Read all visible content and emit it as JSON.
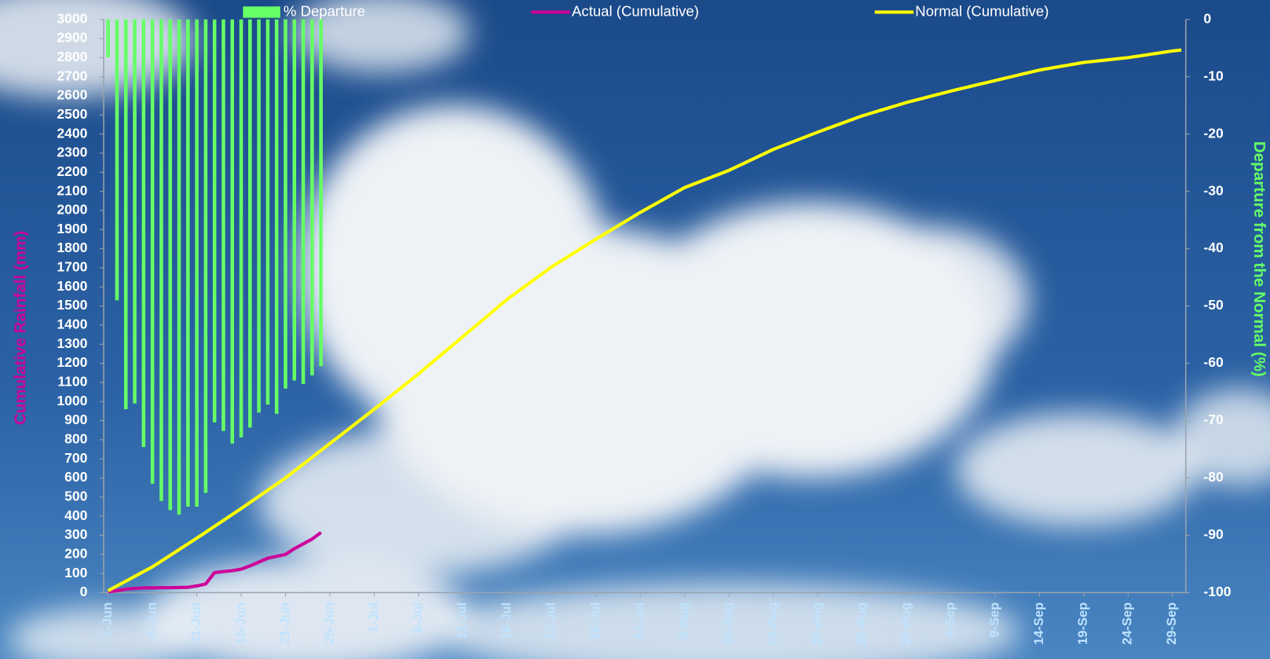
{
  "chart_data": {
    "type": "combo",
    "y_label": "Cumulative Rainfall (mm)",
    "y2_label": "Departure from the Normal (%)",
    "categories": [
      "1-Jun",
      null,
      null,
      null,
      null,
      "6-Jun",
      null,
      null,
      null,
      null,
      "11-Jun",
      null,
      null,
      null,
      null,
      "16-Jun",
      null,
      null,
      null,
      null,
      "21-Jun",
      null,
      null,
      null,
      null,
      "26-Jun",
      null,
      null,
      null,
      null,
      "1-Jul",
      null,
      null,
      null,
      null,
      "6-Jul",
      null,
      null,
      null,
      null,
      "11-Jul",
      null,
      null,
      null,
      null,
      "16-Jul",
      null,
      null,
      null,
      null,
      "21-Jul",
      null,
      null,
      null,
      null,
      "26-Jul",
      null,
      null,
      null,
      null,
      "31-Jul",
      null,
      null,
      null,
      null,
      "5-Aug",
      null,
      null,
      null,
      null,
      "10-Aug",
      null,
      null,
      null,
      null,
      "15-Aug",
      null,
      null,
      null,
      null,
      "20-Aug",
      null,
      null,
      null,
      null,
      "25-Aug",
      null,
      null,
      null,
      null,
      "30-Aug",
      null,
      null,
      null,
      null,
      "4-Sep",
      null,
      null,
      null,
      null,
      "9-Sep",
      null,
      null,
      null,
      null,
      "14-Sep",
      null,
      null,
      null,
      null,
      "19-Sep",
      null,
      null,
      null,
      null,
      "24-Sep",
      null,
      null,
      null,
      null,
      "29-Sep",
      null
    ],
    "series": [
      {
        "name": "% Departure",
        "type": "bar",
        "axis": "y2",
        "color": "#66ff66",
        "values": [
          -6.6,
          -49,
          -68,
          -67,
          -74.6,
          -81,
          -84,
          -85.6,
          -86.4,
          -85,
          -85,
          -82.6,
          -70.3,
          -71.8,
          -74,
          -72.9,
          -71.2,
          -68.6,
          -67.2,
          -68.8,
          -64.4,
          -63,
          -63.6,
          -62.1,
          -60.5,
          null,
          null,
          null,
          null,
          null,
          null,
          null,
          null,
          null,
          null,
          null,
          null,
          null,
          null,
          null,
          null,
          null,
          null,
          null,
          null,
          null,
          null,
          null,
          null,
          null,
          null,
          null,
          null,
          null,
          null,
          null,
          null,
          null,
          null,
          null,
          null,
          null,
          null,
          null,
          null,
          null,
          null,
          null,
          null,
          null,
          null,
          null,
          null,
          null,
          null,
          null,
          null,
          null,
          null,
          null,
          null,
          null,
          null,
          null,
          null,
          null,
          null,
          null,
          null,
          null,
          null,
          null,
          null,
          null,
          null,
          null,
          null,
          null,
          null,
          null,
          null,
          null,
          null,
          null,
          null,
          null,
          null,
          null,
          null,
          null,
          null,
          null,
          null,
          null,
          null,
          null,
          null,
          null,
          null,
          null,
          null,
          null
        ]
      },
      {
        "name": "Actual (Cumulative)",
        "type": "line",
        "color": "#cc0099",
        "values": [
          5,
          10,
          18,
          22,
          25,
          25,
          26,
          26,
          27,
          28,
          35,
          45,
          105,
          110,
          115,
          123,
          140,
          160,
          180,
          190,
          200,
          230,
          255,
          280,
          315,
          null,
          null,
          null,
          null,
          null,
          null,
          null,
          null,
          null,
          null,
          null,
          null,
          null,
          null,
          null,
          null,
          null,
          null,
          null,
          null,
          null,
          null,
          null,
          null,
          null,
          null,
          null,
          null,
          null,
          null,
          null,
          null,
          null,
          null,
          null,
          null,
          null,
          null,
          null,
          null,
          null,
          null,
          null,
          null,
          null,
          null,
          null,
          null,
          null,
          null,
          null,
          null,
          null,
          null,
          null,
          null,
          null,
          null,
          null,
          null,
          null,
          null,
          null,
          null,
          null,
          null,
          null,
          null,
          null,
          null,
          null,
          null,
          null,
          null,
          null,
          null,
          null,
          null,
          null,
          null,
          null,
          null,
          null,
          null,
          null,
          null,
          null,
          null,
          null,
          null,
          null,
          null,
          null,
          null,
          null,
          null,
          null
        ]
      },
      {
        "name": "Normal (Cumulative)",
        "type": "line",
        "color": "#ffff00",
        "values": [
          10,
          35,
          60,
          85,
          110,
          135,
          165,
          195,
          225,
          255,
          285,
          316,
          347,
          378,
          409,
          440,
          472,
          504,
          536,
          568,
          600,
          636,
          672,
          708,
          744,
          780,
          816,
          852,
          888,
          924,
          960,
          997,
          1034,
          1071,
          1108,
          1145,
          1184,
          1223,
          1262,
          1301,
          1340,
          1379,
          1418,
          1457,
          1496,
          1535,
          1569,
          1603,
          1637,
          1671,
          1705,
          1734,
          1763,
          1792,
          1821,
          1850,
          1878,
          1906,
          1934,
          1962,
          1990,
          2016,
          2042,
          2068,
          2094,
          2120,
          2138,
          2156,
          2174,
          2192,
          2210,
          2232,
          2254,
          2276,
          2298,
          2320,
          2338,
          2356,
          2374,
          2392,
          2410,
          2427,
          2444,
          2461,
          2478,
          2495,
          2509,
          2523,
          2537,
          2551,
          2565,
          2577,
          2589,
          2601,
          2613,
          2625,
          2636,
          2647,
          2658,
          2669,
          2680,
          2691,
          2702,
          2713,
          2724,
          2735,
          2743,
          2751,
          2759,
          2767,
          2775,
          2780,
          2785,
          2790,
          2795,
          2800,
          2807,
          2814,
          2821,
          2828,
          2835,
          2840
        ]
      }
    ],
    "ylim": [
      0,
      3000
    ],
    "yticks": [
      0,
      100,
      200,
      300,
      400,
      500,
      600,
      700,
      800,
      900,
      1000,
      1100,
      1200,
      1300,
      1400,
      1500,
      1600,
      1700,
      1800,
      1900,
      2000,
      2100,
      2200,
      2300,
      2400,
      2500,
      2600,
      2700,
      2800,
      2900,
      3000
    ],
    "y2lim": [
      -100,
      0
    ],
    "y2ticks": [
      -100,
      -90,
      -80,
      -70,
      -60,
      -50,
      -40,
      -30,
      -20,
      -10,
      0
    ],
    "legend": "top",
    "grid": false
  }
}
